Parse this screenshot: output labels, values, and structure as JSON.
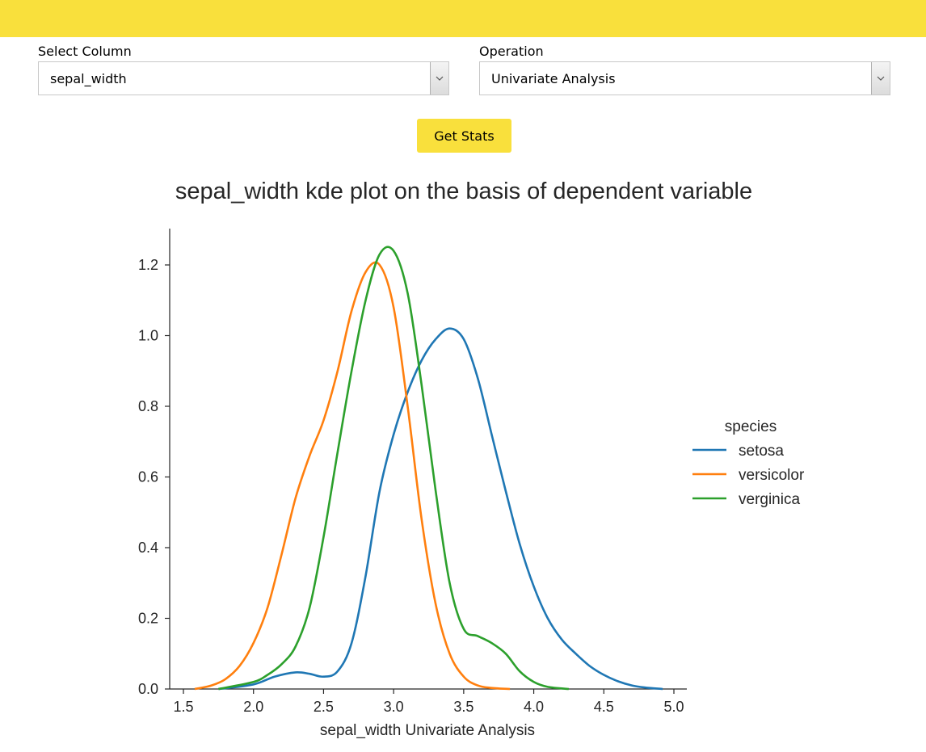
{
  "form": {
    "column_label": "Select Column",
    "column_value": "sepal_width",
    "operation_label": "Operation",
    "operation_value": "Univariate Analysis",
    "button_label": "Get Stats"
  },
  "colors": {
    "accent": "#f9e03c",
    "setosa": "#1f77b4",
    "versicolor": "#ff7f0e",
    "verginica": "#2ca02c"
  },
  "chart_data": {
    "type": "line",
    "title": "sepal_width kde plot on the basis of dependent variable",
    "xlabel": "sepal_width Univariate Analysis",
    "ylabel": "",
    "xlim": [
      1.45,
      5.08
    ],
    "ylim": [
      0,
      1.31
    ],
    "xticks": [
      "1.5",
      "2.0",
      "2.5",
      "3.0",
      "3.5",
      "4.0",
      "4.5",
      "5.0"
    ],
    "yticks": [
      "0.0",
      "0.2",
      "0.4",
      "0.6",
      "0.8",
      "1.0",
      "1.2"
    ],
    "legend_title": "species",
    "legend_position": "right",
    "grid": false,
    "series": [
      {
        "name": "setosa",
        "x": [
          1.75,
          2.0,
          2.15,
          2.3,
          2.4,
          2.5,
          2.6,
          2.7,
          2.8,
          2.9,
          3.0,
          3.1,
          3.2,
          3.3,
          3.4,
          3.5,
          3.6,
          3.7,
          3.8,
          3.9,
          4.0,
          4.1,
          4.2,
          4.3,
          4.4,
          4.5,
          4.6,
          4.7,
          4.8,
          4.92
        ],
        "y": [
          0.0,
          0.013,
          0.035,
          0.047,
          0.043,
          0.035,
          0.05,
          0.13,
          0.32,
          0.56,
          0.72,
          0.84,
          0.93,
          0.99,
          1.02,
          0.99,
          0.88,
          0.72,
          0.56,
          0.41,
          0.29,
          0.2,
          0.14,
          0.1,
          0.065,
          0.04,
          0.022,
          0.01,
          0.004,
          0.0
        ]
      },
      {
        "name": "versicolor",
        "x": [
          1.58,
          1.7,
          1.8,
          1.9,
          2.0,
          2.1,
          2.2,
          2.3,
          2.4,
          2.5,
          2.6,
          2.7,
          2.8,
          2.9,
          3.0,
          3.1,
          3.2,
          3.3,
          3.4,
          3.5,
          3.6,
          3.7,
          3.83
        ],
        "y": [
          0.0,
          0.01,
          0.028,
          0.065,
          0.13,
          0.23,
          0.38,
          0.54,
          0.66,
          0.76,
          0.9,
          1.07,
          1.18,
          1.2,
          1.08,
          0.8,
          0.48,
          0.24,
          0.1,
          0.035,
          0.01,
          0.003,
          0.0
        ]
      },
      {
        "name": "verginica",
        "x": [
          1.75,
          2.0,
          2.1,
          2.2,
          2.3,
          2.4,
          2.5,
          2.6,
          2.7,
          2.8,
          2.9,
          3.0,
          3.1,
          3.2,
          3.3,
          3.4,
          3.5,
          3.6,
          3.7,
          3.8,
          3.9,
          4.0,
          4.1,
          4.25
        ],
        "y": [
          0.0,
          0.02,
          0.04,
          0.07,
          0.12,
          0.23,
          0.43,
          0.67,
          0.9,
          1.1,
          1.23,
          1.24,
          1.12,
          0.86,
          0.56,
          0.3,
          0.17,
          0.15,
          0.13,
          0.1,
          0.05,
          0.02,
          0.006,
          0.0
        ]
      }
    ]
  }
}
